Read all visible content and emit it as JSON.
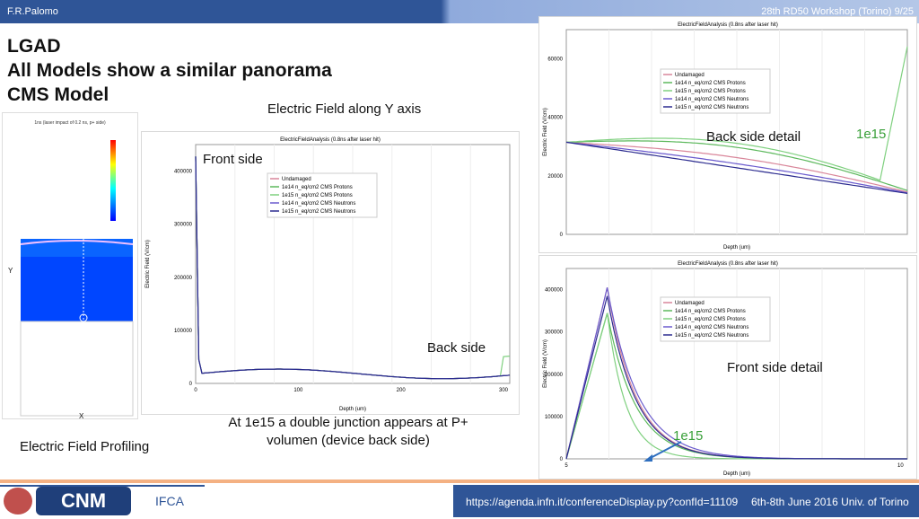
{
  "header": {
    "author": "F.R.Palomo",
    "conference": "28th RD50 Workshop (Torino) 9/25"
  },
  "title": {
    "line1": "LGAD",
    "line2": "All Models show a similar panorama",
    "line3": "CMS Model"
  },
  "captions": {
    "efield_y": "Electric Field along Y axis",
    "front_side": "Front side",
    "back_side": "Back side",
    "back_detail": "Back side detail",
    "front_detail": "Front side detail",
    "e15_top": "1e15",
    "e15_bottom": "1e15",
    "double_junction": "At 1e15 a double junction appears at P+ volumen (device back side)",
    "profiling": "Electric Field Profiling"
  },
  "footer": {
    "url": "https://agenda.infn.it/conferenceDisplay.py?confId=11109",
    "date": "6th-8th June  2016  Univ. of Torino",
    "logo_cnm": "CNM",
    "logo_ific": "IFCA"
  },
  "mesh_plot": {
    "title": "1ns (laser impact of 0.2 ns, p+ side)",
    "ylabel": "Y",
    "xlabel": "X"
  },
  "chart_data": [
    {
      "type": "line",
      "title": "ElectricFieldAnalysis (0.8ns after laser hit)",
      "xlabel": "Depth (um)",
      "ylabel": "Electric Field (V/cm)",
      "x_ticks": [
        "0",
        "100",
        "200",
        "300"
      ],
      "y_ticks": [
        "0",
        "100000",
        "200000",
        "300000",
        "400000"
      ],
      "legend": [
        "Undamaged",
        "1e14 n_eq/cm2 CMS Protons",
        "1e15 n_eq/cm2 CMS Protons",
        "1e14 n_eq/cm2 CMS Neutrons",
        "1e15 n_eq/cm2 CMS Neutrons"
      ]
    },
    {
      "type": "line",
      "title": "ElectricFieldAnalysis (0.8ns after laser hit)",
      "xlabel": "Depth (um)",
      "ylabel": "Electric Field (V/cm)",
      "y_ticks": [
        "0",
        "20000",
        "40000",
        "60000"
      ],
      "legend": [
        "Undamaged",
        "1e14 n_eq/cm2 CMS Protons",
        "1e15 n_eq/cm2 CMS Protons",
        "1e14 n_eq/cm2 CMS Neutrons",
        "1e15 n_eq/cm2 CMS Neutrons"
      ]
    },
    {
      "type": "line",
      "title": "ElectricFieldAnalysis (0.8ns after laser hit)",
      "xlabel": "Depth (um)",
      "ylabel": "Electric Field (V/cm)",
      "x_ticks": [
        "5",
        "10"
      ],
      "y_ticks": [
        "0",
        "100000",
        "200000",
        "300000",
        "400000"
      ],
      "legend": [
        "Undamaged",
        "1e14 n_eq/cm2 CMS Protons",
        "1e15 n_eq/cm2 CMS Protons",
        "1e14 n_eq/cm2 CMS Neutrons",
        "1e15 n_eq/cm2 CMS Neutrons"
      ]
    }
  ],
  "colors": {
    "undamaged": "#d9869a",
    "p14": "#5cb85c",
    "p15": "#7fd07f",
    "n14": "#6a5acd",
    "n15": "#2b2b8f"
  }
}
